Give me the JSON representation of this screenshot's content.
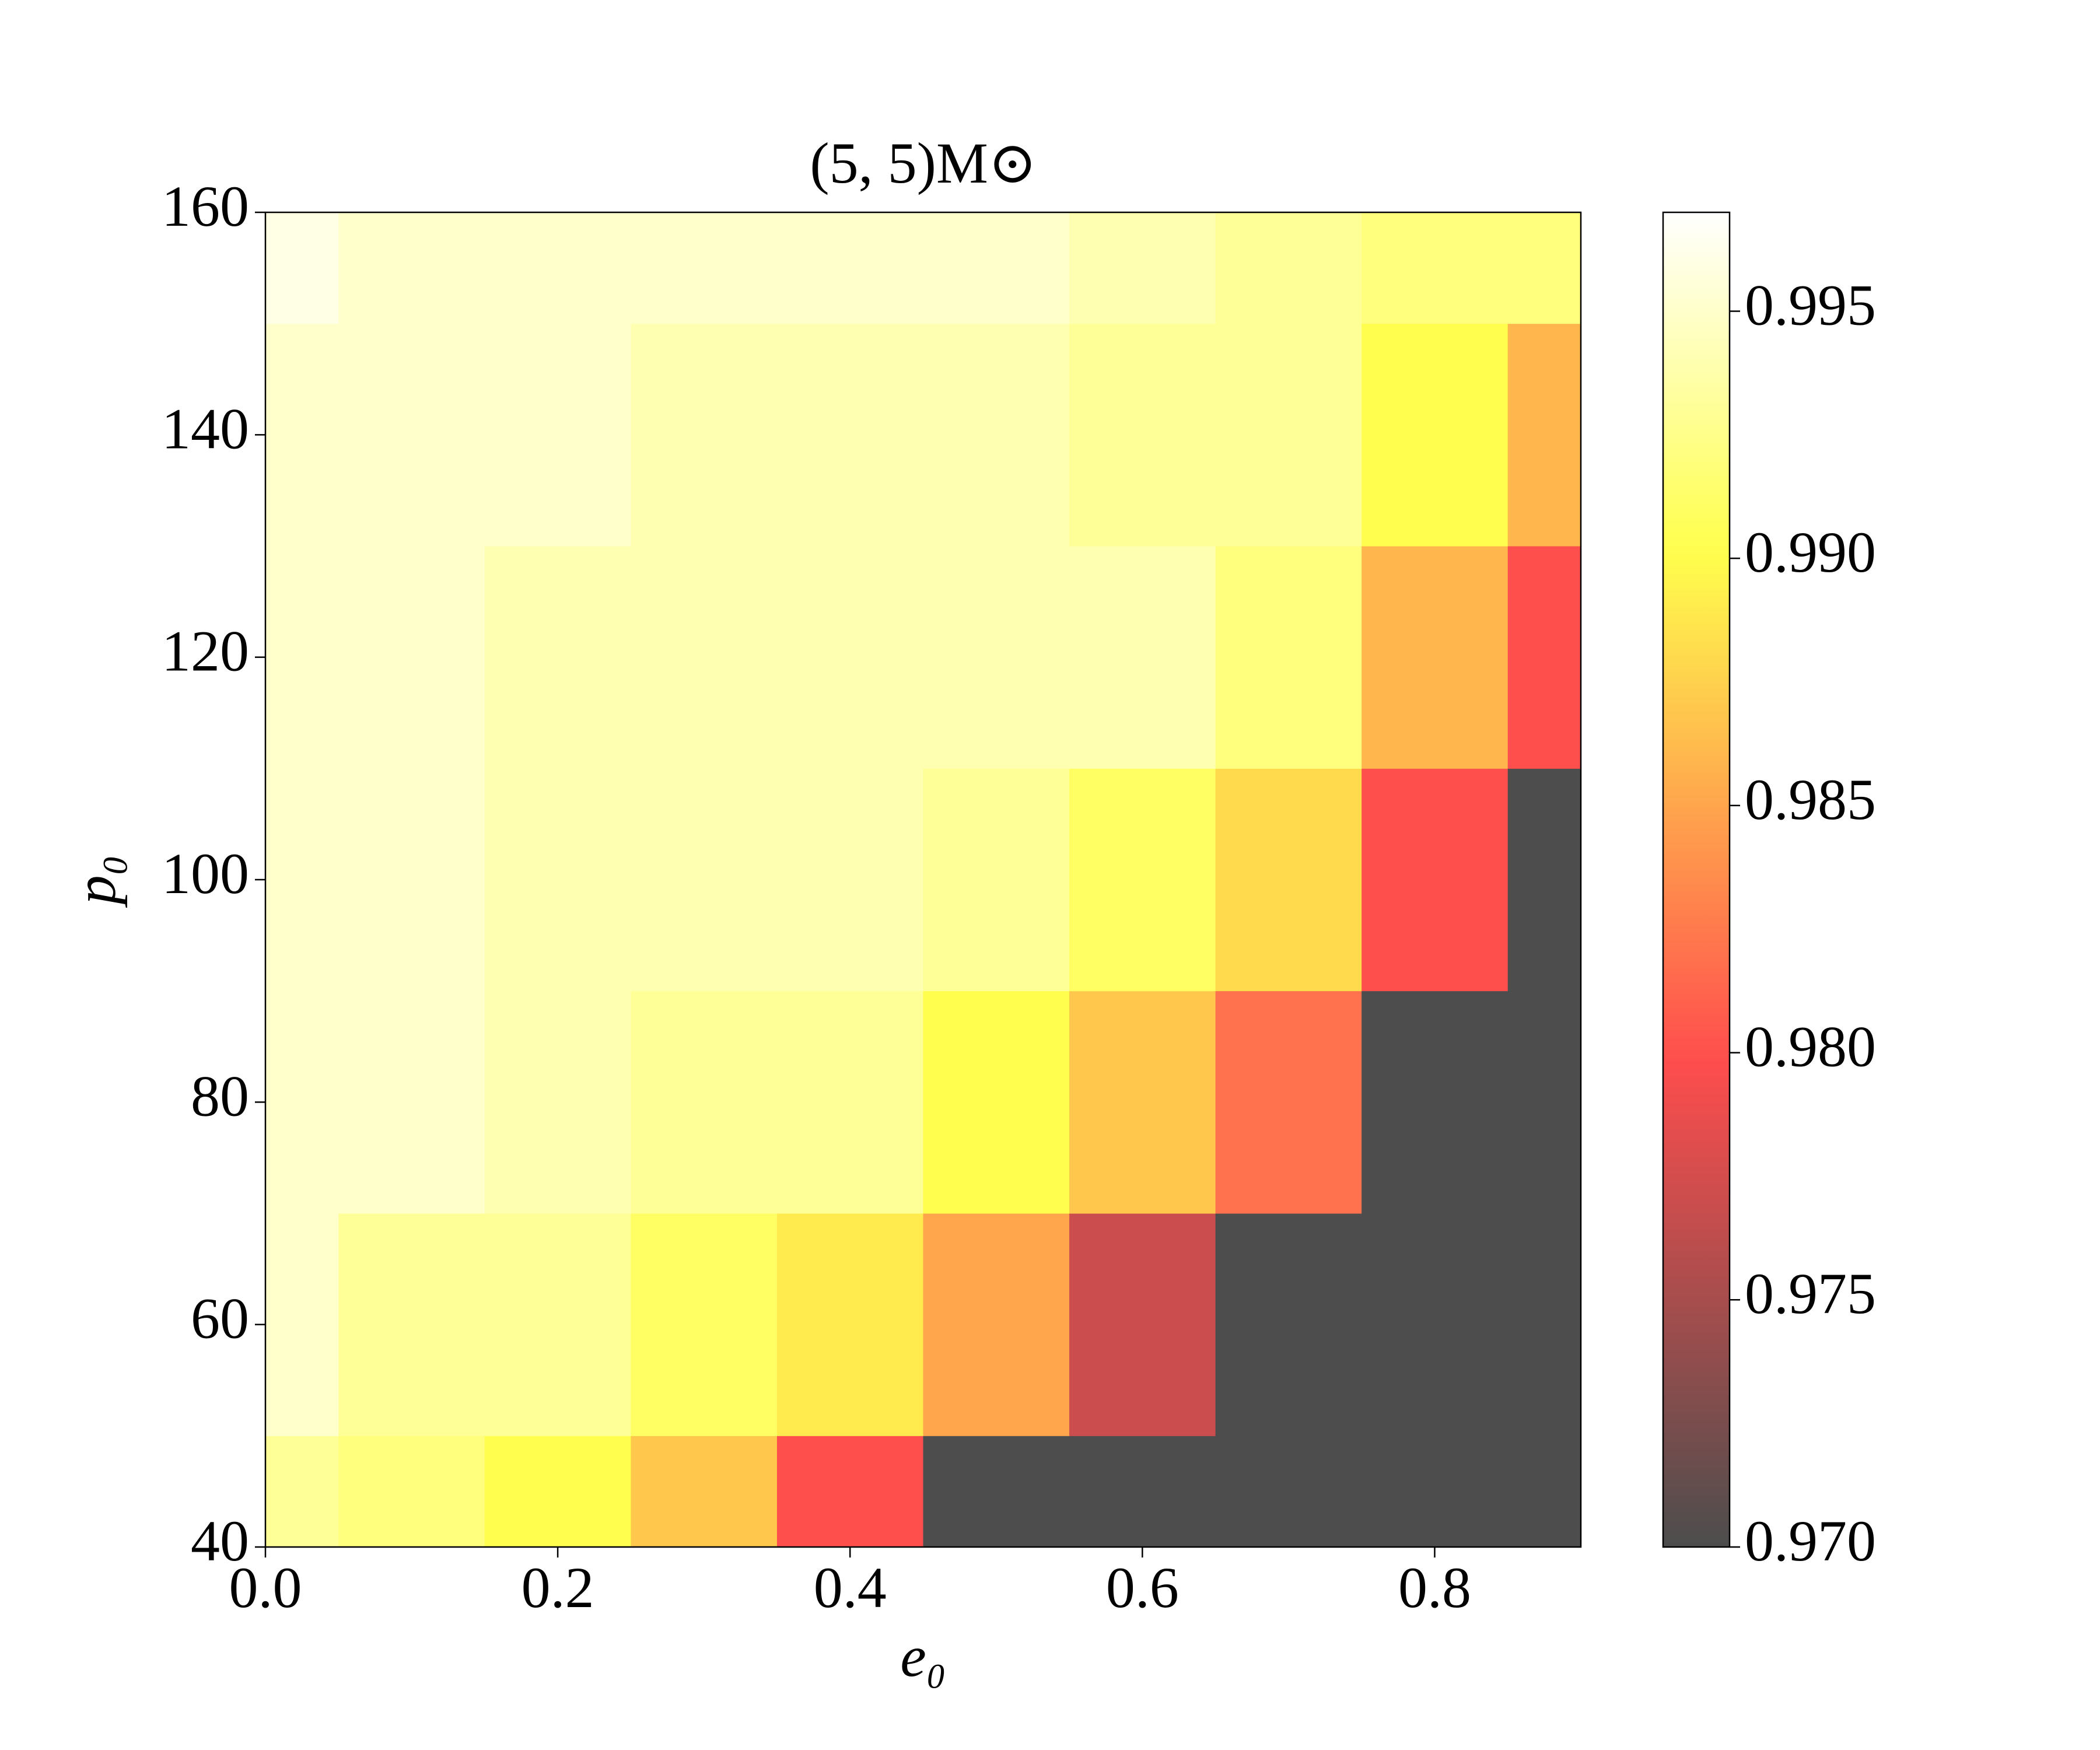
{
  "chart_data": {
    "type": "heatmap",
    "title": "(5, 5)M⊙",
    "xlabel": "e₀",
    "ylabel": "p₀",
    "x": [
      0.0,
      0.1,
      0.2,
      0.3,
      0.4,
      0.5,
      0.6,
      0.7,
      0.8,
      0.9
    ],
    "y": [
      40,
      60,
      80,
      100,
      120,
      140,
      160
    ],
    "values": [
      [
        0.993,
        0.992,
        0.99,
        0.987,
        0.98,
        0.97,
        0.97,
        0.97,
        0.97,
        0.97
      ],
      [
        0.995,
        0.993,
        0.993,
        0.991,
        0.989,
        0.985,
        0.977,
        0.97,
        0.97,
        0.97
      ],
      [
        0.995,
        0.995,
        0.994,
        0.993,
        0.993,
        0.99,
        0.987,
        0.982,
        0.97,
        0.97
      ],
      [
        0.995,
        0.995,
        0.994,
        0.994,
        0.994,
        0.993,
        0.991,
        0.988,
        0.98,
        0.97
      ],
      [
        0.995,
        0.995,
        0.994,
        0.994,
        0.994,
        0.994,
        0.994,
        0.992,
        0.986,
        0.98
      ],
      [
        0.995,
        0.995,
        0.995,
        0.994,
        0.994,
        0.994,
        0.993,
        0.993,
        0.99,
        0.986
      ],
      [
        0.996,
        0.995,
        0.995,
        0.995,
        0.995,
        0.995,
        0.994,
        0.993,
        0.992,
        0.992
      ]
    ],
    "colormap": "hot",
    "alpha": 0.7,
    "xlim": [
      0,
      0.9
    ],
    "ylim": [
      40,
      160
    ],
    "xticks": [
      {
        "value": 0,
        "label": "0.0"
      },
      {
        "value": 0.2,
        "label": "0.2"
      },
      {
        "value": 0.4,
        "label": "0.4"
      },
      {
        "value": 0.6,
        "label": "0.6"
      },
      {
        "value": 0.8,
        "label": "0.8"
      }
    ],
    "yticks": [
      40,
      60,
      80,
      100,
      120,
      140,
      160
    ],
    "colorbar_lim": [
      0.97,
      0.997
    ],
    "colorbar_ticks": [
      {
        "value": 0.97,
        "label": "0.970"
      },
      {
        "value": 0.975,
        "label": "0.975"
      },
      {
        "value": 0.98,
        "label": "0.980"
      },
      {
        "value": 0.985,
        "label": "0.985"
      },
      {
        "value": 0.99,
        "label": "0.990"
      },
      {
        "value": 0.995,
        "label": "0.995"
      }
    ]
  }
}
